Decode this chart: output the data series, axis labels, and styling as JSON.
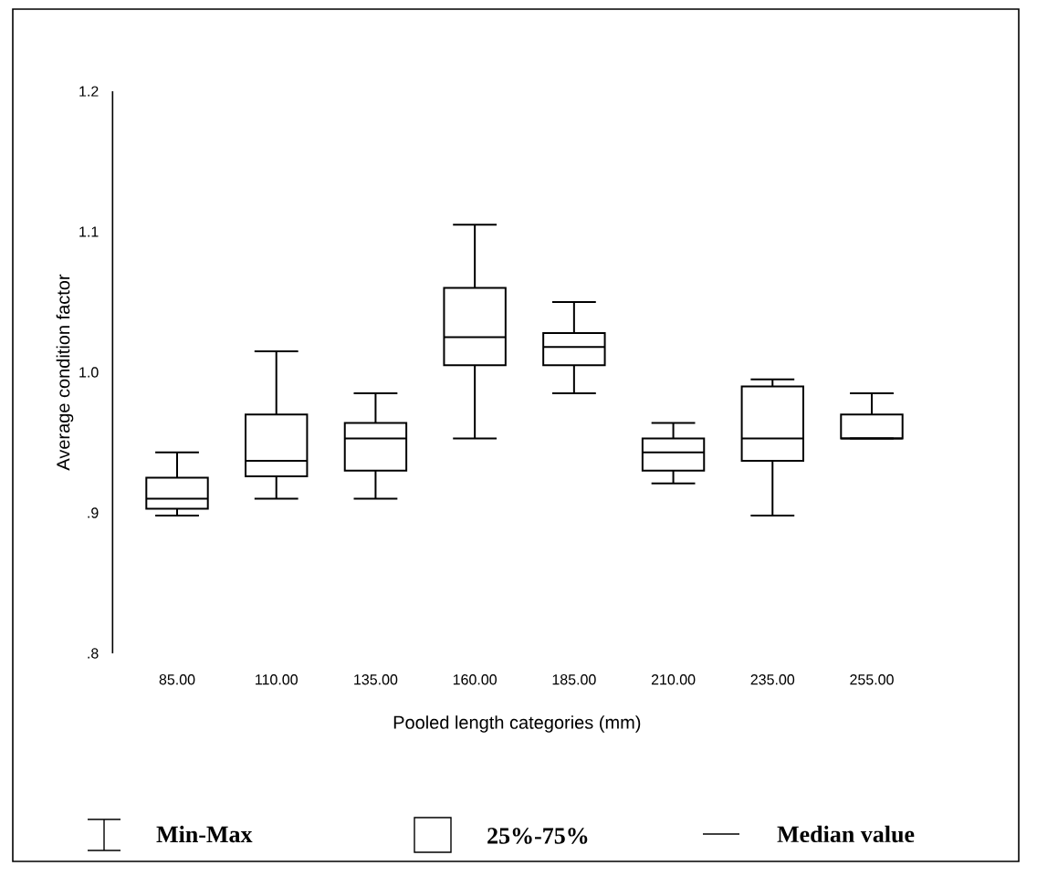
{
  "chart_data": {
    "type": "box",
    "xlabel": "Pooled length categories (mm)",
    "ylabel": "Average condition factor",
    "categories": [
      "85.00",
      "110.00",
      "135.00",
      "160.00",
      "185.00",
      "210.00",
      "235.00",
      "255.00"
    ],
    "boxes": [
      {
        "low": 0.898,
        "q1": 0.903,
        "median": 0.91,
        "q3": 0.925,
        "high": 0.943
      },
      {
        "low": 0.91,
        "q1": 0.926,
        "median": 0.937,
        "q3": 0.97,
        "high": 1.015
      },
      {
        "low": 0.91,
        "q1": 0.93,
        "median": 0.953,
        "q3": 0.964,
        "high": 0.985
      },
      {
        "low": 0.953,
        "q1": 1.005,
        "median": 1.025,
        "q3": 1.06,
        "high": 1.105
      },
      {
        "low": 0.985,
        "q1": 1.005,
        "median": 1.018,
        "q3": 1.028,
        "high": 1.05
      },
      {
        "low": 0.921,
        "q1": 0.93,
        "median": 0.943,
        "q3": 0.953,
        "high": 0.964
      },
      {
        "low": 0.898,
        "q1": 0.937,
        "median": 0.953,
        "q3": 0.99,
        "high": 0.995
      },
      {
        "low": 0.953,
        "q1": 0.953,
        "median": 0.953,
        "q3": 0.97,
        "high": 0.985
      }
    ],
    "color": "#000000",
    "ylim": [
      0.8,
      1.2
    ],
    "yticks": [
      {
        "value": 0.8,
        "label": ".8"
      },
      {
        "value": 0.9,
        "label": ".9"
      },
      {
        "value": 1.0,
        "label": "1.0"
      },
      {
        "value": 1.1,
        "label": "1.1"
      },
      1.2
    ],
    "grid": false,
    "annotations": [
      "Min-Max",
      "25%-75%",
      "Median value"
    ]
  }
}
